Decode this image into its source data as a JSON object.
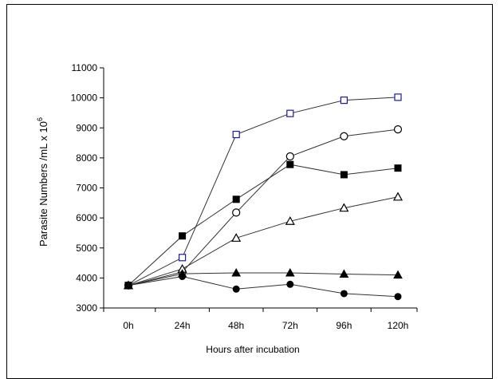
{
  "chart_data": {
    "type": "line",
    "title": "",
    "xlabel": "Hours after incubation",
    "ylabel": "Parasite Numbers /mL x 10",
    "ylabel_superscript": "6",
    "categories": [
      "0h",
      "24h",
      "48h",
      "72h",
      "96h",
      "120h"
    ],
    "ylim": [
      3000,
      11000
    ],
    "yticks": [
      "3000",
      "4000",
      "5000",
      "6000",
      "7000",
      "8000",
      "9000",
      "10000",
      "11000"
    ],
    "grid": false,
    "series": [
      {
        "marker": "open-square",
        "color": "#1a1aa0",
        "values": [
          3750,
          4680,
          8780,
          9480,
          9920,
          10020
        ]
      },
      {
        "marker": "open-circle",
        "color": "#000000",
        "values": [
          3750,
          4200,
          6180,
          8050,
          8720,
          8950
        ]
      },
      {
        "marker": "filled-square",
        "color": "#000000",
        "values": [
          3750,
          5400,
          6620,
          7780,
          7440,
          7660
        ]
      },
      {
        "marker": "open-triangle",
        "color": "#000000",
        "values": [
          3750,
          4300,
          5330,
          5890,
          6330,
          6700
        ]
      },
      {
        "marker": "filled-triangle",
        "color": "#000000",
        "values": [
          3750,
          4140,
          4170,
          4170,
          4130,
          4100
        ]
      },
      {
        "marker": "filled-circle",
        "color": "#000000",
        "values": [
          3750,
          4050,
          3630,
          3790,
          3480,
          3380
        ]
      }
    ]
  }
}
